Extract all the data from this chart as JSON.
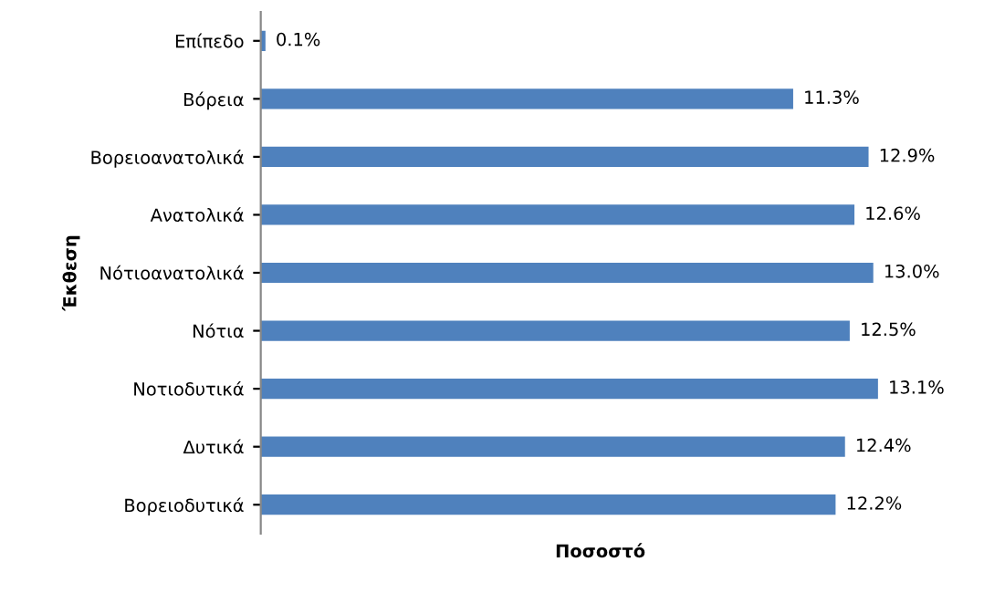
{
  "chart_data": {
    "type": "bar",
    "orientation": "horizontal",
    "xlabel": "Ποσοστό",
    "ylabel": "Έκθεση",
    "categories": [
      "Επίπεδο",
      "Βόρεια",
      "Βορειοανατολικά",
      "Ανατολικά",
      "Νότιοανατολικά",
      "Νότια",
      "Νοτιοδυτικά",
      "Δυτικά",
      "Βορειοδυτικά"
    ],
    "values": [
      0.1,
      11.3,
      12.9,
      12.6,
      13.0,
      12.5,
      13.1,
      12.4,
      12.2
    ],
    "value_labels": [
      "0.1%",
      "11.3%",
      "12.9%",
      "12.6%",
      "13.0%",
      "12.5%",
      "13.1%",
      "12.4%",
      "12.2%"
    ],
    "color": "#4f81bd",
    "grid": false,
    "legend": false
  }
}
